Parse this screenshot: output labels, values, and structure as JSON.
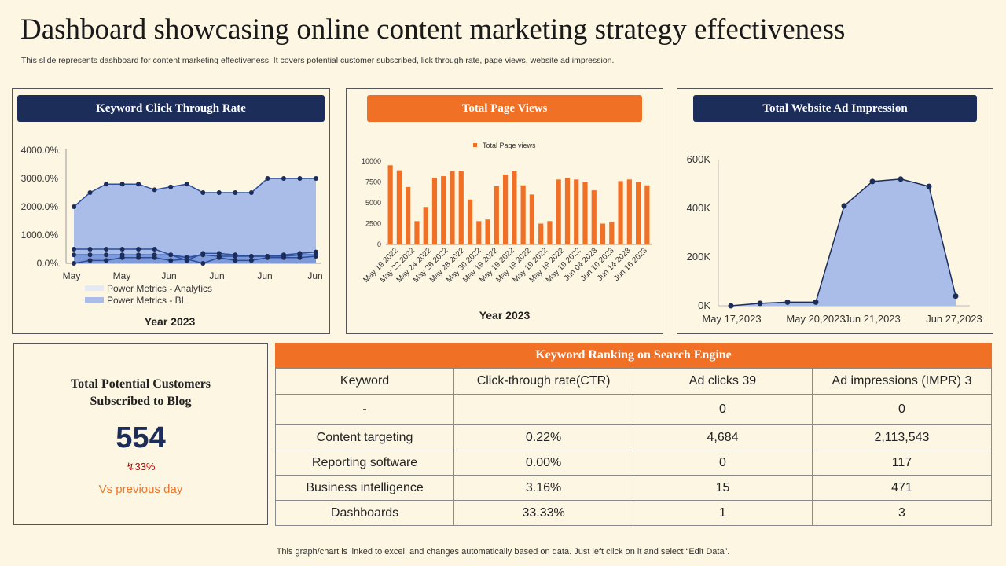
{
  "title": "Dashboard showcasing online content marketing strategy effectiveness",
  "subtitle": "This slide represents dashboard for content marketing effectiveness. It covers  potential customer subscribed, lick through rate, page views, website ad impression.",
  "footer": "This graph/chart is linked to excel, and changes automatically based on data. Just left click on it and select “Edit Data”.",
  "colors": {
    "navy": "#1c2d5a",
    "orange": "#f07026",
    "area_blue": "#a9bde8",
    "background": "#fdf6e3"
  },
  "ctr_panel": {
    "header": "Keyword Click Through  Rate"
  },
  "pageviews_panel": {
    "header": "Total Page Views"
  },
  "ad_panel": {
    "header": "Total Website Ad Impression"
  },
  "kpi": {
    "label_line1": "Total Potential Customers",
    "label_line2": "Subscribed to Blog",
    "value": "554",
    "change": "33%",
    "change_icon": "arrow-down-icon",
    "comparison": "Vs previous day"
  },
  "keyword_table": {
    "title": "Keyword Ranking on Search Engine",
    "headers": [
      "Keyword",
      "Click-through rate(CTR)",
      "Ad clicks 39",
      "Ad impressions (IMPR)  3"
    ],
    "rows": [
      [
        "-",
        "",
        "0",
        "0"
      ],
      [
        "Content targeting",
        "0.22%",
        "4,684",
        "2,113,543"
      ],
      [
        "Reporting software",
        "0.00%",
        "0",
        "117"
      ],
      [
        "Business intelligence",
        "3.16%",
        "15",
        "471"
      ],
      [
        "Dashboards",
        "33.33%",
        "1",
        "3"
      ]
    ]
  },
  "chart_data": [
    {
      "type": "area",
      "id": "ctr",
      "xlabel": "Year 2023",
      "x_ticks": [
        "May",
        "May",
        "Jun",
        "Jun",
        "Jun",
        "Jun"
      ],
      "y_ticks": [
        "0.0%",
        "1000.0%",
        "2000.0%",
        "3000.0%",
        "4000.0%"
      ],
      "ylim": [
        0,
        4000
      ],
      "legend": [
        "Power Metrics - Analytics",
        "Power Metrics - BI"
      ],
      "legend_position": "bottom",
      "series": [
        {
          "name": "Power Metrics - Analytics",
          "values": [
            2000,
            2500,
            2800,
            2800,
            2800,
            2600,
            2700,
            2800,
            2500,
            2500,
            2500,
            2500,
            3000,
            3000,
            3000,
            3000
          ]
        },
        {
          "values": [
            500,
            500,
            500,
            500,
            500,
            500,
            300,
            100,
            350,
            350,
            300,
            250,
            250,
            300,
            350,
            400
          ]
        },
        {
          "values": [
            300,
            300,
            300,
            300,
            300,
            300,
            300,
            200,
            300,
            250,
            250,
            250,
            250,
            250,
            300,
            300
          ]
        },
        {
          "name": "Power Metrics - BI",
          "values": [
            0,
            100,
            100,
            200,
            200,
            200,
            100,
            150,
            0,
            200,
            100,
            100,
            200,
            200,
            200,
            250
          ]
        }
      ]
    },
    {
      "type": "bar",
      "id": "pageviews",
      "xlabel": "Year 2023",
      "legend": [
        "Total Page views"
      ],
      "legend_position": "top",
      "ylim": [
        0,
        10000
      ],
      "y_ticks": [
        "0",
        "2500",
        "5000",
        "7500",
        "10000"
      ],
      "x_tick_labels": [
        "May 19 2022",
        "May 22 2022",
        "May 24 2022",
        "May 26 2022",
        "May 28 2022",
        "May 30 2022",
        "May 19 2022",
        "May 19 2022",
        "May 19 2022",
        "May 19 2022",
        "May 19 2022",
        "May 19 2022",
        "Jun 04 2023",
        "Jun 10 2023",
        "Jun 14 2023",
        "Jun 16 2023"
      ],
      "values": [
        9500,
        8900,
        6900,
        2800,
        4500,
        8000,
        8200,
        8800,
        8800,
        5400,
        2800,
        3000,
        7000,
        8400,
        8800,
        7100,
        6000,
        2500,
        2800,
        7800,
        8000,
        7800,
        7500,
        6500,
        2500,
        2700,
        7600,
        7800,
        7500,
        7100
      ]
    },
    {
      "type": "area",
      "id": "ad_impressions",
      "ylim": [
        0,
        600000
      ],
      "y_ticks": [
        "0K",
        "200K",
        "400K",
        "600K"
      ],
      "x_tick_labels": [
        "May 17,2023",
        "May 20,2023",
        "Jun 21,2023",
        "Jun 27,2023"
      ],
      "series": [
        {
          "values": [
            0,
            10000,
            15000,
            15000,
            410000,
            510000,
            520000,
            490000,
            40000
          ]
        }
      ]
    }
  ]
}
